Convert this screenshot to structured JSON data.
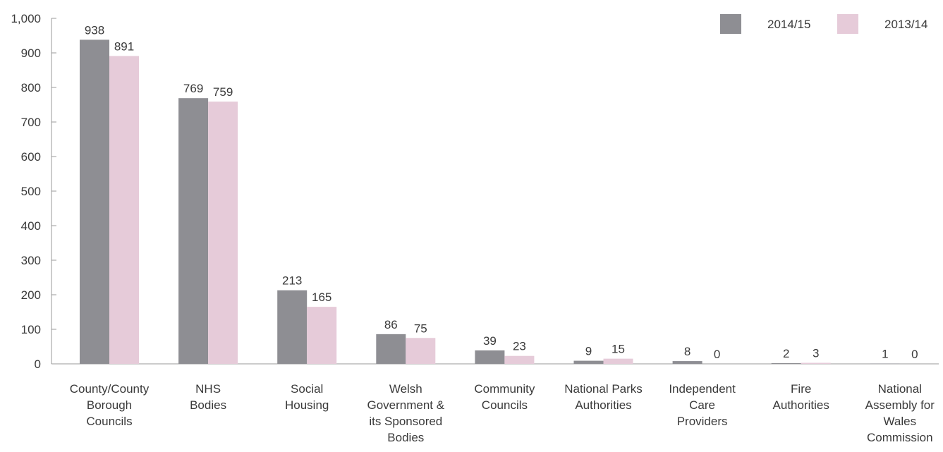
{
  "chart_data": {
    "type": "bar",
    "title": "",
    "xlabel": "",
    "ylabel": "",
    "ylim": [
      0,
      1000
    ],
    "yticks": [
      0,
      100,
      200,
      300,
      400,
      500,
      600,
      700,
      800,
      900,
      1000
    ],
    "ytick_labels": [
      "0",
      "100",
      "200",
      "300",
      "400",
      "500",
      "600",
      "700",
      "800",
      "900",
      "1,000"
    ],
    "grid": false,
    "legend_position": "top-right",
    "categories": [
      [
        "County/County",
        "Borough",
        "Councils"
      ],
      [
        "NHS",
        "Bodies"
      ],
      [
        "Social",
        "Housing"
      ],
      [
        "Welsh",
        "Government &",
        "its Sponsored",
        "Bodies"
      ],
      [
        "Community",
        "Councils"
      ],
      [
        "National Parks",
        "Authorities"
      ],
      [
        "Independent",
        "Care",
        "Providers"
      ],
      [
        "Fire",
        "Authorities"
      ],
      [
        "National",
        "Assembly for",
        "Wales",
        "Commission"
      ]
    ],
    "series": [
      {
        "name": "2014/15",
        "color": "#8e8e93",
        "values": [
          938,
          769,
          213,
          86,
          39,
          9,
          8,
          2,
          1
        ]
      },
      {
        "name": "2013/14",
        "color": "#e6cbd9",
        "values": [
          891,
          759,
          165,
          75,
          23,
          15,
          0,
          3,
          0
        ]
      }
    ],
    "colors": {
      "axis": "#9a9a9a",
      "text": "#3a3a3a"
    }
  }
}
